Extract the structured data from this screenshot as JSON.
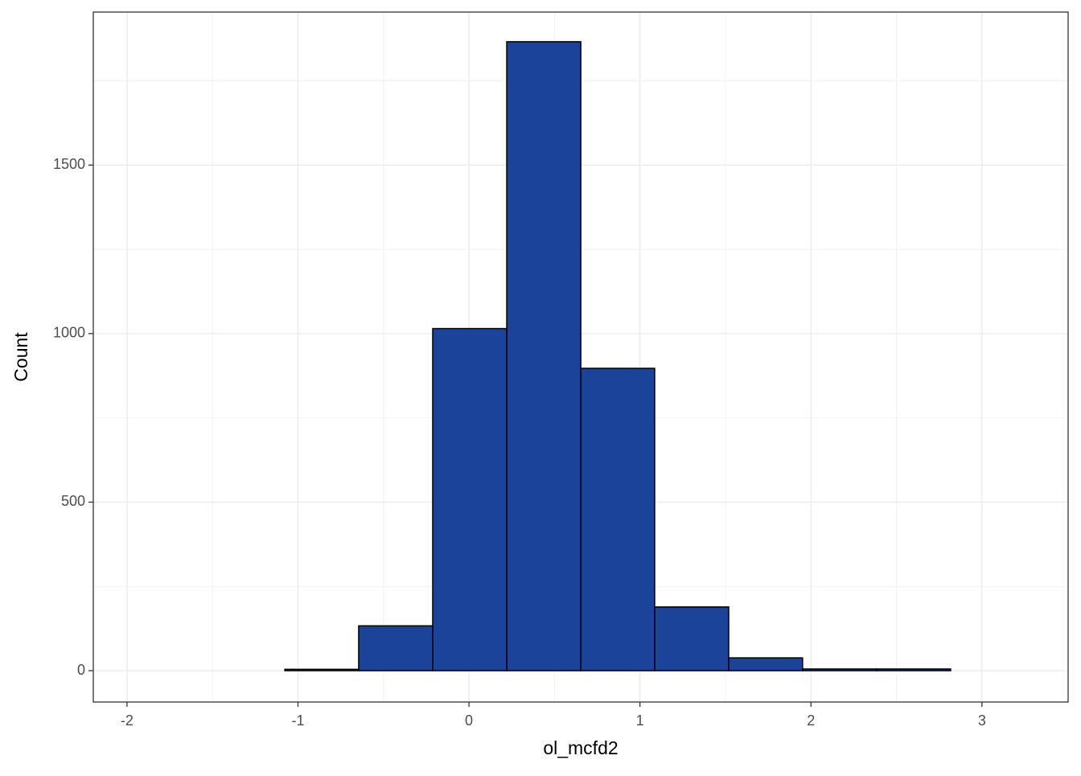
{
  "chart_data": {
    "type": "histogram",
    "x_label": "ol_mcfd2",
    "y_label": "Count",
    "bins": [
      -1.943,
      -1.51,
      -1.077,
      -0.645,
      -0.212,
      0.221,
      0.654,
      1.086,
      1.519,
      1.951,
      2.384,
      2.817,
      3.25
    ],
    "values": [
      0,
      0,
      4,
      133,
      1015,
      1866,
      897,
      189,
      38,
      5,
      5,
      0
    ],
    "color": "#1a4399",
    "xlim": [
      -2.197,
      3.504
    ],
    "xticks": [
      -2,
      -1,
      0,
      1,
      2,
      3
    ],
    "ylim": [
      -93,
      1954
    ],
    "yticks": [
      0,
      500,
      1000,
      1500
    ],
    "grid": true
  }
}
